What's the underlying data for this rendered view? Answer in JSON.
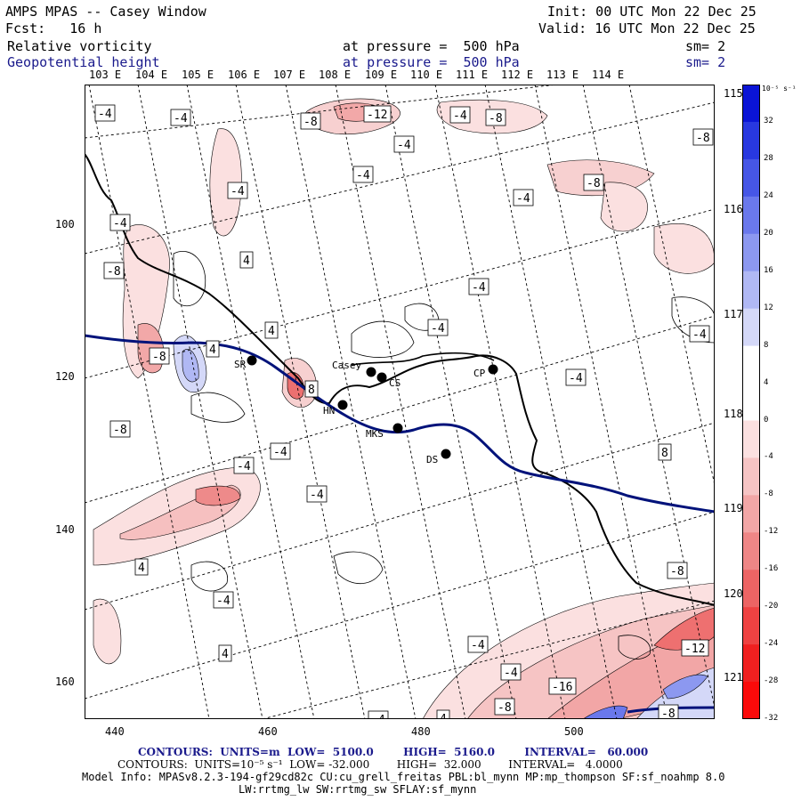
{
  "header": {
    "title": "AMPS MPAS -- Casey Window",
    "fcst": "Fcst:   16 h",
    "init": "Init: 00 UTC Mon 22 Dec 25",
    "valid": "Valid: 16 UTC Mon 22 Dec 25",
    "field1": "Relative vorticity",
    "field1_level": "at pressure =  500 hPa",
    "field1_sm": "sm= 2",
    "field2": "Geopotential height",
    "field2_level": "at pressure =  500 hPa",
    "field2_sm": "sm= 2"
  },
  "map": {
    "lon_labels_top": [
      "103 E",
      "104 E",
      "105 E",
      "106 E",
      "107 E",
      "108 E",
      "109 E",
      "110 E",
      "111 E",
      "112 E",
      "113 E",
      "114 E"
    ],
    "lat_labels_right": [
      "115 E",
      "116 E",
      "117 E",
      "118 E",
      "119 E",
      "120 E",
      "121 E"
    ],
    "y_axis": [
      "100",
      "120",
      "140",
      "160"
    ],
    "x_axis": [
      "440",
      "460",
      "480",
      "500"
    ],
    "stations": [
      {
        "name": "SR"
      },
      {
        "name": "Casey"
      },
      {
        "name": "CS"
      },
      {
        "name": "CP"
      },
      {
        "name": "HN"
      },
      {
        "name": "MKS"
      },
      {
        "name": "DS"
      }
    ],
    "contour_labels": [
      "-4",
      "-4",
      "-8",
      "-12",
      "-4",
      "-8",
      "-4",
      "-4",
      "-8",
      "-4",
      "-8",
      "-4",
      "-4",
      "-8",
      "-4",
      "4",
      "4",
      "-4",
      "-4",
      "4",
      "-8",
      "-4",
      "8",
      "-8",
      "8",
      "-4",
      "-4",
      "-4",
      "-4",
      "4",
      "-4",
      "-8",
      "4",
      "4",
      "-4",
      "-8",
      "-12",
      "-16",
      "-8",
      "-4",
      "-4",
      "-12"
    ]
  },
  "colorbar": {
    "unit": "10⁻⁵ s⁻¹",
    "ticks": [
      "32",
      "28",
      "24",
      "20",
      "16",
      "12",
      "8",
      "4",
      "0",
      "-4",
      "-8",
      "-12",
      "-16",
      "-20",
      "-24",
      "-28",
      "-32"
    ],
    "colors": [
      "#0a14d6",
      "#2838e0",
      "#4656e6",
      "#6a78ec",
      "#8c98f0",
      "#b0b8f4",
      "#d4d8f8",
      "#ffffff",
      "#ffffff",
      "#fbe0e0",
      "#f6c4c4",
      "#f2a6a6",
      "#ee8686",
      "#ec6464",
      "#ee4242",
      "#f02020",
      "#fa0a0a"
    ]
  },
  "footer": {
    "line1_label": "CONTOURS:  UNITS=m  LOW=  5100.0        HIGH=  5160.0        INTERVAL=   60.000",
    "line2_label": "CONTOURS:  UNITS=10⁻⁵ s⁻¹  LOW= -32.000        HIGH=  32.000        INTERVAL=   4.0000",
    "model_info": "Model Info: MPASv8.2.3-194-gf29cd82c CU:cu_grell_freitas PBL:bl_mynn MP:mp_thompson SF:sf_noahmp 8.0",
    "model_info2": "LW:rrtmg_lw SW:rrtmg_sw SFLAY:sf_mynn"
  }
}
